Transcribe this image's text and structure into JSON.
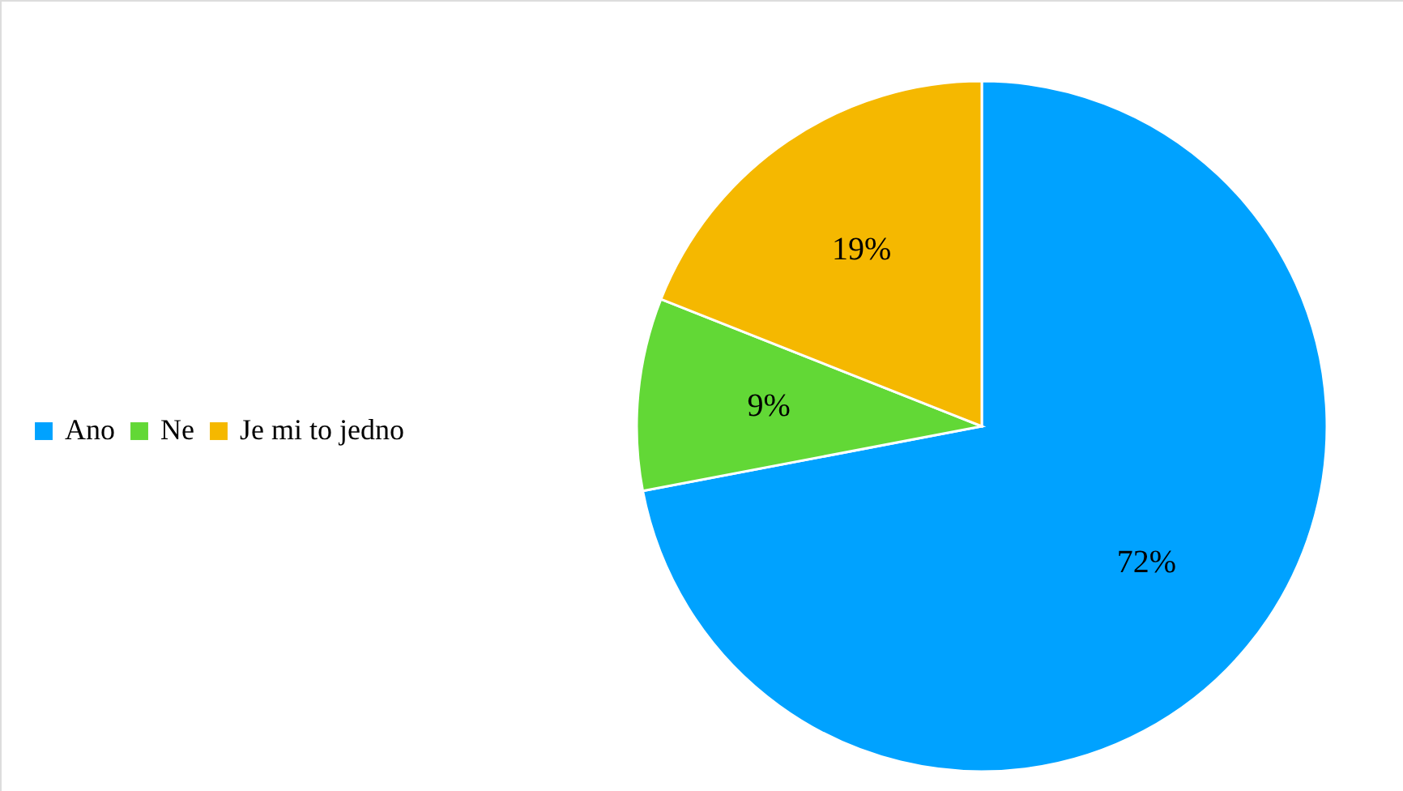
{
  "chart_data": {
    "type": "pie",
    "categories": [
      "Ano",
      "Ne",
      "Je mi to jedno"
    ],
    "values": [
      72,
      9,
      19
    ],
    "colors": [
      "#00a2ff",
      "#62d836",
      "#f5b800"
    ],
    "value_labels": [
      "72%",
      "9%",
      "19%"
    ],
    "legend": "left"
  }
}
